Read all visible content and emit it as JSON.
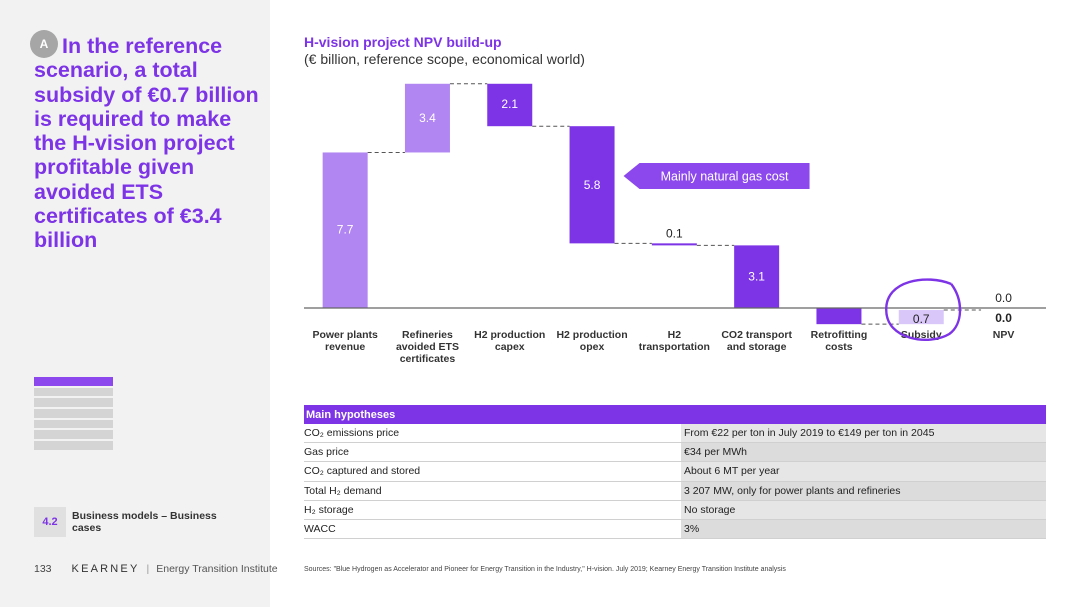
{
  "left": {
    "badge": "A",
    "headline": "In the reference scenario, a total subsidy of €0.7 billion is required to make the H-vision project profitable given avoided ETS certificates of €3.4 billion",
    "section_number": "4.2",
    "section_title": "Business models – Business cases",
    "page_number": "133",
    "brand": "KEARNEY",
    "brand_separator": "|",
    "brand_sub": "Energy Transition Institute",
    "nav_active_index": 0,
    "nav_count": 7
  },
  "chart_data": {
    "type": "bar",
    "subtype": "waterfall",
    "title": "H-vision project NPV build-up",
    "subtitle": "(€ billion, reference scope, economical world)",
    "categories": [
      "Power plants\nrevenue",
      "Refineries\navoided ETS\ncertificates",
      "H2 production\ncapex",
      "H2 production\nopex",
      "H2\ntransportation",
      "CO2 transport\nand storage",
      "Retrofitting\ncosts",
      "Subsidy",
      "NPV"
    ],
    "values": [
      7.7,
      3.4,
      -2.1,
      -5.8,
      -0.1,
      -3.1,
      -0.8,
      0.7,
      0.0
    ],
    "value_labels": [
      "7.7",
      "3.4",
      "2.1",
      "5.8",
      "0.1",
      "3.1",
      "0.8",
      "0.7",
      "0.0"
    ],
    "extra_label": "0.0",
    "annotation": "Mainly natural gas cost",
    "annotation_target_index": 3,
    "highlight_index": 7,
    "colors": {
      "positive": "#b185f2",
      "negative": "#7d33e6",
      "subsidy": "#d9c7fa",
      "connector": "#555555",
      "baseline": "#666666",
      "annotation_bg": "#8c47ed",
      "circle": "#7d33e6"
    }
  },
  "table": {
    "header": "Main hypotheses",
    "rows": [
      {
        "key": "CO₂ emissions price",
        "value": "From €22 per ton in July 2019 to €149 per ton in 2045"
      },
      {
        "key": "Gas price",
        "value": "€34 per MWh"
      },
      {
        "key": "CO₂ captured and stored",
        "value": "About 6 MT per year"
      },
      {
        "key": "Total H₂ demand",
        "value": "3 207 MW, only for power plants and refineries"
      },
      {
        "key": "H₂ storage",
        "value": "No storage"
      },
      {
        "key": "WACC",
        "value": "3%"
      }
    ]
  },
  "sources": "Sources: \"Blue Hydrogen as Accelerator and Pioneer for Energy Transition in the Industry,\" H-vision. July 2019; Kearney Energy Transition Institute analysis"
}
